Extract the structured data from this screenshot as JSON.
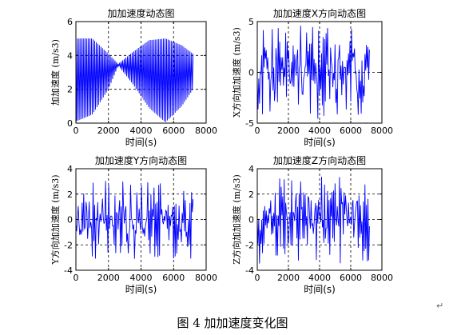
{
  "figure": {
    "caption": "图 4  加加速度变化图",
    "paragraph_mark": "↵",
    "line_color": "#0000ff",
    "grid_color": "#000000"
  },
  "chart_data": [
    {
      "type": "line",
      "title": "加加速度动态图",
      "xlabel": "时间(s)",
      "ylabel": "加加速度 (m/s3)",
      "xlim": [
        0,
        8000
      ],
      "ylim": [
        0,
        6
      ],
      "xticks": [
        0,
        2000,
        4000,
        6000,
        8000
      ],
      "yticks": [
        0,
        2,
        4,
        6
      ],
      "grid": "dashed",
      "series": [
        {
          "x_range": [
            0,
            7200
          ],
          "samples": 150,
          "envelope_upper": {
            "x": [
              0,
              1000,
              2000,
              2600,
              3500,
              4500,
              5500,
              6500,
              7200
            ],
            "y": [
              5.0,
              5.0,
              4.1,
              3.5,
              4.2,
              4.9,
              5.0,
              4.6,
              4.1
            ]
          },
          "envelope_lower": {
            "x": [
              0,
              1000,
              2000,
              2600,
              3500,
              4500,
              5500,
              6500,
              7200
            ],
            "y": [
              0.1,
              0.5,
              2.0,
              3.4,
              2.3,
              0.9,
              0.05,
              1.0,
              2.0
            ]
          }
        }
      ]
    },
    {
      "type": "line",
      "title": "加加速度X方向动态图",
      "xlabel": "时间(s)",
      "ylabel": "X方向加加速度 (m/s3)",
      "xlim": [
        0,
        8000
      ],
      "ylim": [
        -5,
        5
      ],
      "xticks": [
        0,
        2000,
        4000,
        6000,
        8000
      ],
      "yticks": [
        -5,
        0,
        5
      ],
      "grid": "dashed",
      "series": [
        {
          "x_range": [
            0,
            7200
          ],
          "samples": 150,
          "amplitude": 4.6,
          "seed": 11
        }
      ]
    },
    {
      "type": "line",
      "title": "加加速度Y方向动态图",
      "xlabel": "时间(s)",
      "ylabel": "Y方向加加速度 (m/s3)",
      "xlim": [
        0,
        8000
      ],
      "ylim": [
        -4,
        4
      ],
      "xticks": [
        0,
        2000,
        4000,
        6000,
        8000
      ],
      "yticks": [
        -4,
        -2,
        0,
        2,
        4
      ],
      "grid": "dashed",
      "series": [
        {
          "x_range": [
            0,
            7200
          ],
          "samples": 150,
          "amplitude": 3.1,
          "seed": 23
        }
      ]
    },
    {
      "type": "line",
      "title": "加加速度Z方向动态图",
      "xlabel": "时间(s)",
      "ylabel": "Z方向加加速度 (m/s3)",
      "xlim": [
        0,
        8000
      ],
      "ylim": [
        -4,
        4
      ],
      "xticks": [
        0,
        2000,
        4000,
        6000,
        8000
      ],
      "yticks": [
        -4,
        -2,
        0,
        2,
        4
      ],
      "grid": "dashed",
      "series": [
        {
          "x_range": [
            0,
            7200
          ],
          "samples": 150,
          "amplitude": 3.6,
          "seed": 37
        }
      ]
    }
  ]
}
